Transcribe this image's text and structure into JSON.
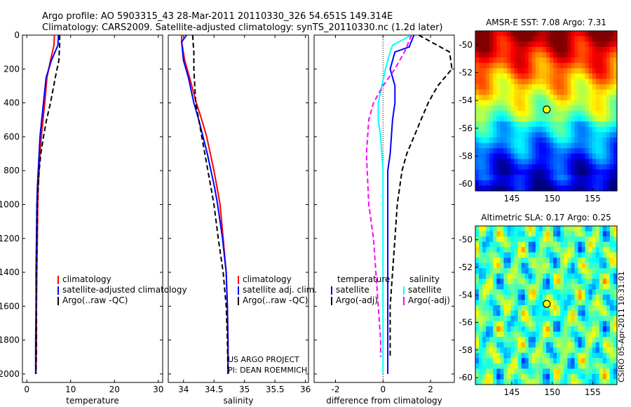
{
  "header": {
    "line1": "Argo profile: AO 5903315_43 28-Mar-2011 20110330_326 54.651S 149.314E",
    "line2": "Climatology: CARS2009. Satellite-adjusted climatology: synTS_20110330.nc (1.2d later)"
  },
  "credits": {
    "project": "US ARGO PROJECT",
    "pi": "PI: DEAN ROEMMICH",
    "stamp": "CSIRO 05-Apr-2011 10:31:01"
  },
  "colors": {
    "climatology": "#ff0000",
    "satellite": "#0000ff",
    "argo": "#000000",
    "salinity_satellite": "#00ffff",
    "salinity_argo": "#ff00ff"
  },
  "chart_data": [
    {
      "type": "line",
      "xlabel": "temperature",
      "ylabel": "",
      "xlim": [
        -1,
        31
      ],
      "ylim": [
        2050,
        0
      ],
      "xticks": [
        0,
        10,
        20,
        30
      ],
      "yticks": [
        0,
        200,
        400,
        600,
        800,
        1000,
        1200,
        1400,
        1600,
        1800,
        2000
      ],
      "legend": [
        "climatology",
        "satellite-adjusted climatology",
        "Argo(..raw -QC)"
      ],
      "series": [
        {
          "name": "climatology",
          "color": "#ff0000",
          "dash": "",
          "x": [
            6.3,
            6.2,
            5.4,
            4.6,
            4.1,
            3.7,
            3.3,
            3.0,
            2.8,
            2.6,
            2.5,
            2.4,
            2.3,
            2.2,
            2.2,
            2.1
          ],
          "y": [
            0,
            60,
            150,
            250,
            400,
            500,
            600,
            700,
            800,
            900,
            1000,
            1200,
            1400,
            1600,
            1800,
            2000
          ]
        },
        {
          "name": "satellite-adjusted climatology",
          "color": "#0000ff",
          "dash": "",
          "x": [
            7.2,
            7.1,
            5.6,
            4.4,
            3.8,
            3.4,
            3.0,
            2.8,
            2.6,
            2.4,
            2.3,
            2.2,
            2.1,
            2.1,
            2.0,
            2.0
          ],
          "y": [
            0,
            60,
            150,
            250,
            400,
            500,
            600,
            700,
            800,
            900,
            1000,
            1200,
            1400,
            1600,
            1800,
            2000
          ]
        },
        {
          "name": "Argo(..raw -QC)",
          "color": "#000000",
          "dash": "7,4",
          "x": [
            7.5,
            7.5,
            7.3,
            6.5,
            5.4,
            4.5,
            3.8,
            3.2,
            2.8,
            2.6,
            2.4,
            2.3,
            2.2,
            2.2,
            2.2,
            2.1
          ],
          "y": [
            0,
            60,
            150,
            250,
            400,
            500,
            600,
            700,
            800,
            900,
            1000,
            1200,
            1400,
            1600,
            1800,
            2000
          ]
        }
      ]
    },
    {
      "type": "line",
      "xlabel": "salinity",
      "ylabel": "",
      "xlim": [
        33.75,
        36.05
      ],
      "ylim": [
        2050,
        0
      ],
      "xticks": [
        34,
        34.5,
        35,
        35.5,
        36
      ],
      "xticklabels": [
        "34",
        "34.5",
        "35",
        "35.5",
        "36"
      ],
      "legend": [
        "climatology",
        "satellite adj. clim.",
        "Argo(..raw -QC)"
      ],
      "series": [
        {
          "name": "climatology",
          "color": "#ff0000",
          "dash": "",
          "x": [
            33.97,
            33.97,
            34.02,
            34.1,
            34.21,
            34.3,
            34.38,
            34.44,
            34.5,
            34.55,
            34.6,
            34.65,
            34.7,
            34.72,
            34.73,
            34.73
          ],
          "y": [
            0,
            40,
            150,
            250,
            400,
            500,
            600,
            700,
            800,
            900,
            1000,
            1200,
            1400,
            1600,
            1800,
            2000
          ]
        },
        {
          "name": "satellite adj. clim.",
          "color": "#0000ff",
          "dash": "",
          "x": [
            34.05,
            33.97,
            34.0,
            34.08,
            34.17,
            34.25,
            34.32,
            34.39,
            34.45,
            34.51,
            34.56,
            34.64,
            34.7,
            34.72,
            34.73,
            34.73
          ],
          "y": [
            0,
            40,
            150,
            250,
            400,
            500,
            600,
            700,
            800,
            900,
            1000,
            1200,
            1400,
            1600,
            1800,
            2000
          ]
        },
        {
          "name": "Argo(..raw -QC)",
          "color": "#000000",
          "dash": "7,4",
          "x": [
            34.15,
            34.16,
            34.17,
            34.17,
            34.2,
            34.25,
            34.3,
            34.35,
            34.4,
            34.45,
            34.5,
            34.57,
            34.65,
            34.7,
            34.72,
            34.73
          ],
          "y": [
            0,
            60,
            100,
            200,
            400,
            500,
            600,
            700,
            800,
            900,
            1000,
            1200,
            1400,
            1600,
            1800,
            2000
          ]
        }
      ]
    },
    {
      "type": "line",
      "xlabel": "difference from climatology",
      "ylabel": "",
      "xlim": [
        -2.9,
        3.0
      ],
      "ylim": [
        2050,
        0
      ],
      "xticks": [
        -2,
        0,
        2
      ],
      "legend_left": [
        "temperature",
        "satellite",
        "Argo(-adj)"
      ],
      "legend_right": [
        "salinity",
        "satellite",
        "Argo(-adj)"
      ],
      "series": [
        {
          "name": "temperature satellite",
          "color": "#0000ff",
          "dash": "",
          "x": [
            1.3,
            1.1,
            0.5,
            0.3,
            0.5,
            0.5,
            0.4,
            0.3,
            0.2,
            0.2,
            0.2,
            0.2,
            0.2,
            0.2,
            0.2
          ],
          "y": [
            0,
            70,
            100,
            200,
            300,
            400,
            500,
            700,
            800,
            1000,
            1200,
            1400,
            1600,
            1800,
            2000
          ]
        },
        {
          "name": "temperature Argo(-adj)",
          "color": "#000000",
          "dash": "7,4",
          "x": [
            1.5,
            2.8,
            2.9,
            2.3,
            1.9,
            1.6,
            1.3,
            1.0,
            0.8,
            0.6,
            0.5,
            0.4,
            0.3,
            0.3,
            0.3
          ],
          "y": [
            0,
            100,
            200,
            300,
            400,
            500,
            600,
            700,
            800,
            1000,
            1200,
            1400,
            1600,
            1800,
            1900
          ]
        },
        {
          "name": "salinity satellite",
          "color": "#00ffff",
          "dash": "",
          "x": [
            1.2,
            0.4,
            0.3,
            0.1,
            -0.2,
            -0.2,
            -0.1,
            0.0,
            0.0,
            0.0,
            0.0,
            0.0,
            0.0,
            0.0,
            0.0
          ],
          "y": [
            0,
            60,
            100,
            200,
            400,
            500,
            600,
            800,
            1000,
            1200,
            1400,
            1600,
            1800,
            1900,
            2000
          ]
        },
        {
          "name": "salinity Argo(-adj)",
          "color": "#ff00ff",
          "dash": "7,4",
          "x": [
            1.2,
            0.9,
            0.5,
            0.0,
            -0.4,
            -0.6,
            -0.7,
            -0.6,
            -0.4,
            -0.3,
            -0.2,
            -0.1,
            -0.1
          ],
          "y": [
            0,
            100,
            200,
            300,
            400,
            500,
            700,
            1000,
            1200,
            1400,
            1600,
            1800,
            1900
          ]
        }
      ]
    },
    {
      "type": "heatmap",
      "title": "AMSR-E SST: 7.08 Argo: 7.31",
      "xlim": [
        140.5,
        158
      ],
      "ylim": [
        -60.5,
        -49
      ],
      "xticks": [
        145,
        150,
        155
      ],
      "yticks": [
        -50,
        -52,
        -54,
        -56,
        -58,
        -60
      ],
      "marker": {
        "lon": 149.314,
        "lat": -54.651
      },
      "field": "sst"
    },
    {
      "type": "heatmap",
      "title": "Altimetric SLA: 0.17 Argo: 0.25",
      "xlim": [
        140.5,
        158
      ],
      "ylim": [
        -60.5,
        -49
      ],
      "xticks": [
        145,
        150,
        155
      ],
      "yticks": [
        -50,
        -52,
        -54,
        -56,
        -58,
        -60
      ],
      "marker": {
        "lon": 149.314,
        "lat": -54.651
      },
      "field": "sla"
    }
  ]
}
